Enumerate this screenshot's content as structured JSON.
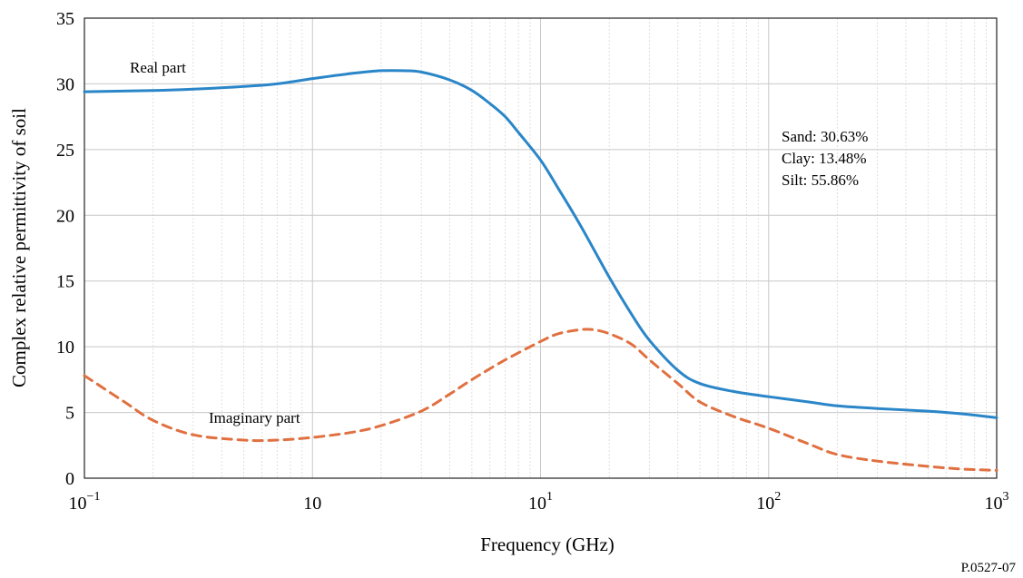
{
  "chart_data": {
    "type": "line",
    "xlabel": "Frequency (GHz)",
    "ylabel": "Complex relative permittivity of soil",
    "x_scale": "log",
    "xlim": [
      0.1,
      1000
    ],
    "ylim": [
      0,
      35
    ],
    "grid": true,
    "y_ticks": [
      {
        "value": 0,
        "label": "0"
      },
      {
        "value": 5,
        "label": "5"
      },
      {
        "value": 10,
        "label": "10"
      },
      {
        "value": 15,
        "label": "15"
      },
      {
        "value": 20,
        "label": "20"
      },
      {
        "value": 25,
        "label": "25"
      },
      {
        "value": 30,
        "label": "30"
      },
      {
        "value": 35,
        "label": "35"
      }
    ],
    "x_ticks": [
      {
        "value": 0.1,
        "base": "10",
        "exp": "−1"
      },
      {
        "value": 1,
        "base": "10",
        "exp": ""
      },
      {
        "value": 10,
        "base": "10",
        "exp": "1"
      },
      {
        "value": 100,
        "base": "10",
        "exp": "2"
      },
      {
        "value": 1000,
        "base": "10",
        "exp": "3"
      }
    ],
    "series": [
      {
        "name": "Real part",
        "color": "#2a86c8",
        "dash": "solid",
        "x": [
          0.1,
          0.2,
          0.3,
          0.5,
          0.7,
          1,
          1.5,
          2,
          2.5,
          3,
          4,
          5,
          6,
          7,
          8,
          10,
          12,
          15,
          20,
          25,
          30,
          40,
          50,
          70,
          100,
          150,
          200,
          300,
          500,
          700,
          1000
        ],
        "y": [
          29.4,
          29.5,
          29.6,
          29.8,
          30.0,
          30.4,
          30.8,
          31.0,
          31.0,
          30.9,
          30.3,
          29.5,
          28.5,
          27.5,
          26.3,
          24.2,
          22.0,
          19.2,
          15.3,
          12.5,
          10.5,
          8.2,
          7.2,
          6.6,
          6.2,
          5.8,
          5.5,
          5.3,
          5.1,
          4.9,
          4.6
        ]
      },
      {
        "name": "Imaginary part",
        "color": "#e07040",
        "dash": "dashed",
        "x": [
          0.1,
          0.15,
          0.2,
          0.3,
          0.5,
          0.7,
          1,
          1.5,
          2,
          3,
          4,
          5,
          7,
          10,
          12,
          15,
          17,
          20,
          25,
          30,
          40,
          50,
          70,
          100,
          150,
          200,
          300,
          500,
          700,
          1000
        ],
        "y": [
          7.8,
          5.8,
          4.4,
          3.3,
          2.9,
          2.9,
          3.1,
          3.5,
          4.0,
          5.1,
          6.4,
          7.5,
          9.0,
          10.4,
          11.0,
          11.3,
          11.3,
          11.0,
          10.2,
          9.0,
          7.2,
          5.8,
          4.7,
          3.8,
          2.6,
          1.8,
          1.3,
          0.9,
          0.7,
          0.6
        ]
      }
    ],
    "annotations": {
      "real_label": "Real part",
      "imag_label": "Imaginary part",
      "composition": [
        "Sand: 30.63%",
        "Clay: 13.48%",
        "Silt: 55.86%"
      ]
    }
  },
  "figure_id": "P.0527-07"
}
